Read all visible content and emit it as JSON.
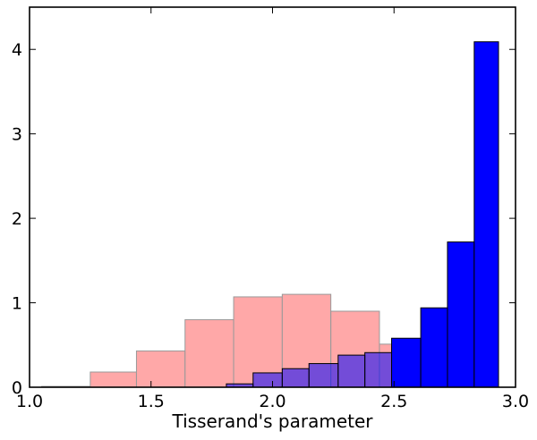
{
  "chart_data": {
    "type": "histogram",
    "title": "",
    "xlabel": "Tisserand's parameter",
    "ylabel": "",
    "xlim": [
      1.0,
      3.0
    ],
    "ylim": [
      0,
      4.5
    ],
    "xticks": [
      1.0,
      1.5,
      2.0,
      2.5,
      3.0
    ],
    "xtick_labels": [
      "1.0",
      "1.5",
      "2.0",
      "2.5",
      "3.0"
    ],
    "yticks": [
      0,
      1,
      2,
      3,
      4
    ],
    "ytick_labels": [
      "0",
      "1",
      "2",
      "3",
      "4"
    ],
    "grid": false,
    "legend": "none",
    "series": [
      {
        "color": "#ff9999",
        "edge_color": "#999999",
        "opacity": 0.85,
        "bins": [
          {
            "x0": 1.05,
            "x1": 1.25,
            "value": 0.01
          },
          {
            "x0": 1.25,
            "x1": 1.44,
            "value": 0.18
          },
          {
            "x0": 1.44,
            "x1": 1.64,
            "value": 0.43
          },
          {
            "x0": 1.64,
            "x1": 1.84,
            "value": 0.8
          },
          {
            "x0": 1.84,
            "x1": 2.04,
            "value": 1.07
          },
          {
            "x0": 2.04,
            "x1": 2.24,
            "value": 1.1
          },
          {
            "x0": 2.24,
            "x1": 2.44,
            "value": 0.9
          },
          {
            "x0": 2.44,
            "x1": 2.63,
            "value": 0.51
          },
          {
            "x0": 2.63,
            "x1": 2.83,
            "value": 0.03
          }
        ]
      },
      {
        "color": "#0000ff",
        "edge_color": "#000000",
        "opacity": 0.55,
        "bins": [
          {
            "x0": 1.81,
            "x1": 1.92,
            "value": 0.04
          },
          {
            "x0": 1.92,
            "x1": 2.04,
            "value": 0.17
          },
          {
            "x0": 2.04,
            "x1": 2.15,
            "value": 0.22
          },
          {
            "x0": 2.15,
            "x1": 2.27,
            "value": 0.28
          },
          {
            "x0": 2.27,
            "x1": 2.38,
            "value": 0.38
          },
          {
            "x0": 2.38,
            "x1": 2.49,
            "value": 0.41
          },
          {
            "x0": 2.49,
            "x1": 2.61,
            "value": 0.49
          },
          {
            "x0": 2.61,
            "x1": 2.72,
            "value": 0.02
          },
          {
            "x0": 2.72,
            "x1": 2.83,
            "value": 0.02
          }
        ]
      },
      {
        "color": "#0000ff",
        "edge_color": "#000000",
        "opacity": 1.0,
        "bins": [
          {
            "x0": 2.49,
            "x1": 2.61,
            "value": 0.58
          },
          {
            "x0": 2.61,
            "x1": 2.72,
            "value": 0.94
          },
          {
            "x0": 2.72,
            "x1": 2.83,
            "value": 1.72
          },
          {
            "x0": 2.83,
            "x1": 2.93,
            "value": 4.09
          }
        ]
      }
    ]
  }
}
